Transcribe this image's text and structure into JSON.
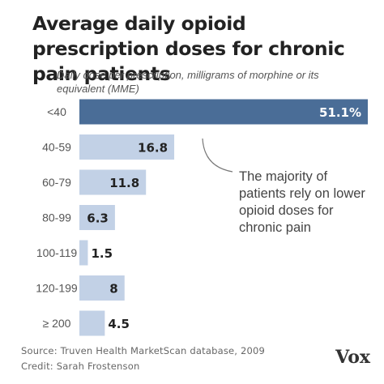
{
  "title": "Average daily opioid prescription doses for chronic pain patients",
  "subtitle": "Daily dose per prescription, milligrams of morphine or its equivalent (MME)",
  "annotation": "The majority of patients rely on lower opioid doses for chronic pain",
  "footer": {
    "source": "Source: Truven Health MarketScan database, 2009",
    "credit": "Credit: Sarah Frostenson"
  },
  "logo": "Vox",
  "colors": {
    "highlight_bar": "#4a6d97",
    "bar": "#c2d1e6",
    "highlight_label": "#ffffff",
    "label": "#222222"
  },
  "chart_data": {
    "type": "bar",
    "orientation": "horizontal",
    "categories": [
      "<40",
      "40-59",
      "60-79",
      "80-99",
      "100-119",
      "120-199",
      "≥ 200"
    ],
    "values": [
      51.1,
      16.8,
      11.8,
      6.3,
      1.5,
      8,
      4.5
    ],
    "value_labels": [
      "51.1%",
      "16.8",
      "11.8",
      "6.3",
      "1.5",
      "8",
      "4.5"
    ],
    "highlight_index": 0,
    "xlim": [
      0,
      51.1
    ],
    "grid": false
  }
}
